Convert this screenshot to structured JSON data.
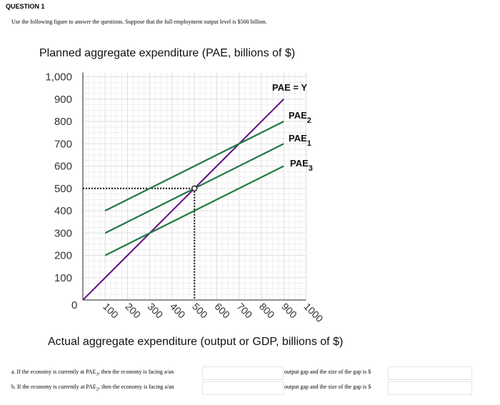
{
  "question": {
    "title": "QUESTION 1",
    "prompt": "Use the following figure to answer the questions. Suppose that the full employment output level is $500 billion."
  },
  "chart_data": {
    "type": "line",
    "ylabel": "Planned aggregate expenditure (PAE, billions of $)",
    "xlabel": "Actual aggregate expenditure (output or GDP, billions of $)",
    "xlim": [
      0,
      1000
    ],
    "ylim": [
      0,
      1000
    ],
    "x_ticks": [
      "100",
      "200",
      "300",
      "400",
      "500",
      "600",
      "700",
      "800",
      "900",
      "1000"
    ],
    "y_ticks": [
      "100",
      "200",
      "300",
      "400",
      "500",
      "600",
      "700",
      "800",
      "900",
      "1,000"
    ],
    "origin_label": "0",
    "grid": true,
    "series": [
      {
        "name": "PAE = Y",
        "color": "#6a1b8a",
        "x": [
          0,
          900
        ],
        "y": [
          0,
          900
        ]
      },
      {
        "name": "PAE",
        "sub": "2",
        "color": "#1e7b43",
        "x": [
          100,
          900
        ],
        "y": [
          400,
          800
        ]
      },
      {
        "name": "PAE",
        "sub": "1",
        "color": "#1e7b43",
        "x": [
          100,
          900
        ],
        "y": [
          300,
          700
        ]
      },
      {
        "name": "PAE",
        "sub": "3",
        "color": "#1e7b43",
        "x": [
          100,
          900
        ],
        "y": [
          200,
          600
        ]
      }
    ],
    "equilibrium_point": {
      "x": 500,
      "y": 500
    }
  },
  "answers": [
    {
      "prefix": "a. If the economy is currently at PAE",
      "sub": "3",
      "mid": ", then the economy is facing a/an",
      "after": "output gap and the size of the gap is $"
    },
    {
      "prefix": "b. If the economy is currently at PAE",
      "sub": "2",
      "mid": ", then the economy is facing a/an",
      "after": "output gap and the size of the gap is $"
    }
  ]
}
